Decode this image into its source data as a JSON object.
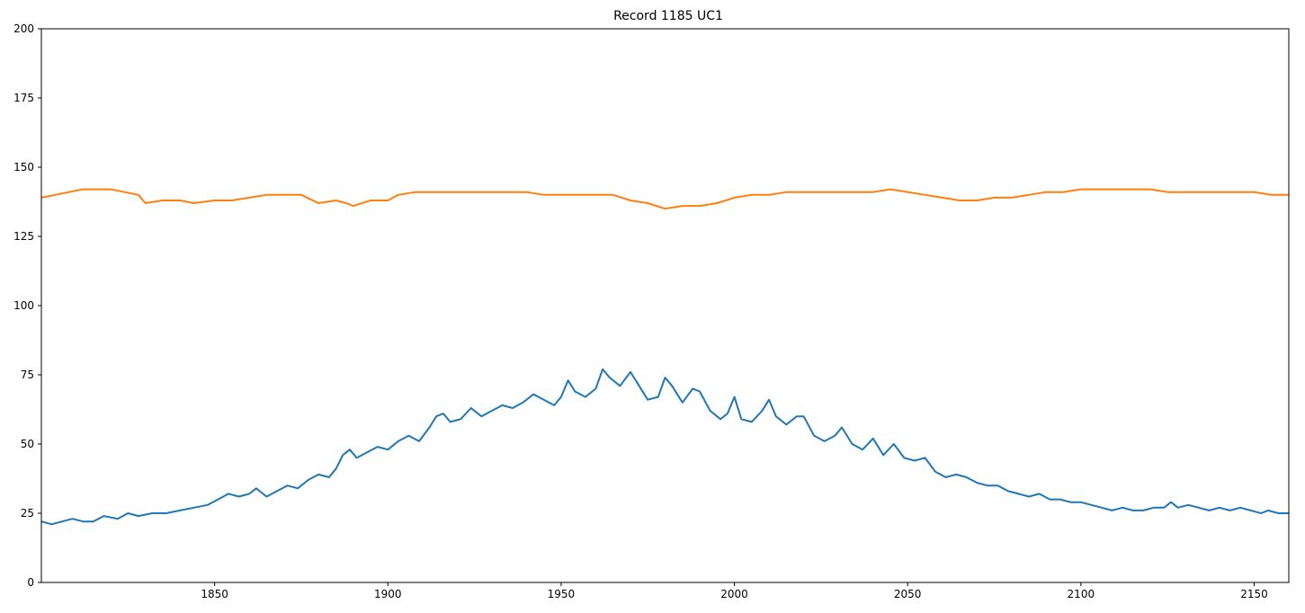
{
  "chart_data": {
    "type": "line",
    "title": "Record 1185 UC1",
    "xlabel": "",
    "ylabel": "",
    "xlim": [
      1800,
      2160
    ],
    "ylim": [
      0,
      200
    ],
    "xticks": [
      1850,
      1900,
      1950,
      2000,
      2050,
      2100,
      2150
    ],
    "yticks": [
      0,
      25,
      50,
      75,
      100,
      125,
      150,
      175,
      200
    ],
    "grid": false,
    "legend": "none",
    "series": [
      {
        "color": "#1f77b4",
        "points": [
          [
            1800,
            22
          ],
          [
            1803,
            21
          ],
          [
            1806,
            22
          ],
          [
            1809,
            23
          ],
          [
            1812,
            22
          ],
          [
            1815,
            22
          ],
          [
            1818,
            24
          ],
          [
            1822,
            23
          ],
          [
            1825,
            25
          ],
          [
            1828,
            24
          ],
          [
            1832,
            25
          ],
          [
            1836,
            25
          ],
          [
            1840,
            26
          ],
          [
            1844,
            27
          ],
          [
            1848,
            28
          ],
          [
            1851,
            30
          ],
          [
            1854,
            32
          ],
          [
            1857,
            31
          ],
          [
            1860,
            32
          ],
          [
            1862,
            34
          ],
          [
            1865,
            31
          ],
          [
            1868,
            33
          ],
          [
            1871,
            35
          ],
          [
            1874,
            34
          ],
          [
            1877,
            37
          ],
          [
            1880,
            39
          ],
          [
            1883,
            38
          ],
          [
            1885,
            41
          ],
          [
            1887,
            46
          ],
          [
            1889,
            48
          ],
          [
            1891,
            45
          ],
          [
            1894,
            47
          ],
          [
            1897,
            49
          ],
          [
            1900,
            48
          ],
          [
            1903,
            51
          ],
          [
            1906,
            53
          ],
          [
            1909,
            51
          ],
          [
            1912,
            56
          ],
          [
            1914,
            60
          ],
          [
            1916,
            61
          ],
          [
            1918,
            58
          ],
          [
            1921,
            59
          ],
          [
            1924,
            63
          ],
          [
            1927,
            60
          ],
          [
            1930,
            62
          ],
          [
            1933,
            64
          ],
          [
            1936,
            63
          ],
          [
            1939,
            65
          ],
          [
            1942,
            68
          ],
          [
            1945,
            66
          ],
          [
            1948,
            64
          ],
          [
            1950,
            67
          ],
          [
            1952,
            73
          ],
          [
            1954,
            69
          ],
          [
            1957,
            67
          ],
          [
            1960,
            70
          ],
          [
            1962,
            77
          ],
          [
            1964,
            74
          ],
          [
            1967,
            71
          ],
          [
            1970,
            76
          ],
          [
            1972,
            72
          ],
          [
            1975,
            66
          ],
          [
            1978,
            67
          ],
          [
            1980,
            74
          ],
          [
            1982,
            71
          ],
          [
            1985,
            65
          ],
          [
            1988,
            70
          ],
          [
            1990,
            69
          ],
          [
            1993,
            62
          ],
          [
            1996,
            59
          ],
          [
            1998,
            61
          ],
          [
            2000,
            67
          ],
          [
            2002,
            59
          ],
          [
            2005,
            58
          ],
          [
            2008,
            62
          ],
          [
            2010,
            66
          ],
          [
            2012,
            60
          ],
          [
            2015,
            57
          ],
          [
            2018,
            60
          ],
          [
            2020,
            60
          ],
          [
            2023,
            53
          ],
          [
            2026,
            51
          ],
          [
            2029,
            53
          ],
          [
            2031,
            56
          ],
          [
            2034,
            50
          ],
          [
            2037,
            48
          ],
          [
            2040,
            52
          ],
          [
            2043,
            46
          ],
          [
            2046,
            50
          ],
          [
            2049,
            45
          ],
          [
            2052,
            44
          ],
          [
            2055,
            45
          ],
          [
            2058,
            40
          ],
          [
            2061,
            38
          ],
          [
            2064,
            39
          ],
          [
            2067,
            38
          ],
          [
            2070,
            36
          ],
          [
            2073,
            35
          ],
          [
            2076,
            35
          ],
          [
            2079,
            33
          ],
          [
            2082,
            32
          ],
          [
            2085,
            31
          ],
          [
            2088,
            32
          ],
          [
            2091,
            30
          ],
          [
            2094,
            30
          ],
          [
            2097,
            29
          ],
          [
            2100,
            29
          ],
          [
            2103,
            28
          ],
          [
            2106,
            27
          ],
          [
            2109,
            26
          ],
          [
            2112,
            27
          ],
          [
            2115,
            26
          ],
          [
            2118,
            26
          ],
          [
            2121,
            27
          ],
          [
            2124,
            27
          ],
          [
            2126,
            29
          ],
          [
            2128,
            27
          ],
          [
            2131,
            28
          ],
          [
            2134,
            27
          ],
          [
            2137,
            26
          ],
          [
            2140,
            27
          ],
          [
            2143,
            26
          ],
          [
            2146,
            27
          ],
          [
            2149,
            26
          ],
          [
            2152,
            25
          ],
          [
            2154,
            26
          ],
          [
            2157,
            25
          ],
          [
            2160,
            25
          ]
        ]
      },
      {
        "color": "#ff7f0e",
        "points": [
          [
            1800,
            139
          ],
          [
            1804,
            140
          ],
          [
            1808,
            141
          ],
          [
            1812,
            142
          ],
          [
            1816,
            142
          ],
          [
            1820,
            142
          ],
          [
            1824,
            141
          ],
          [
            1828,
            140
          ],
          [
            1830,
            137
          ],
          [
            1835,
            138
          ],
          [
            1840,
            138
          ],
          [
            1844,
            137
          ],
          [
            1850,
            138
          ],
          [
            1855,
            138
          ],
          [
            1860,
            139
          ],
          [
            1865,
            140
          ],
          [
            1870,
            140
          ],
          [
            1875,
            140
          ],
          [
            1880,
            137
          ],
          [
            1885,
            138
          ],
          [
            1888,
            137
          ],
          [
            1890,
            136
          ],
          [
            1895,
            138
          ],
          [
            1900,
            138
          ],
          [
            1903,
            140
          ],
          [
            1908,
            141
          ],
          [
            1912,
            141
          ],
          [
            1916,
            141
          ],
          [
            1920,
            141
          ],
          [
            1925,
            141
          ],
          [
            1930,
            141
          ],
          [
            1935,
            141
          ],
          [
            1940,
            141
          ],
          [
            1945,
            140
          ],
          [
            1950,
            140
          ],
          [
            1955,
            140
          ],
          [
            1960,
            140
          ],
          [
            1965,
            140
          ],
          [
            1970,
            138
          ],
          [
            1975,
            137
          ],
          [
            1980,
            135
          ],
          [
            1985,
            136
          ],
          [
            1990,
            136
          ],
          [
            1995,
            137
          ],
          [
            2000,
            139
          ],
          [
            2005,
            140
          ],
          [
            2010,
            140
          ],
          [
            2015,
            141
          ],
          [
            2020,
            141
          ],
          [
            2025,
            141
          ],
          [
            2030,
            141
          ],
          [
            2035,
            141
          ],
          [
            2040,
            141
          ],
          [
            2045,
            142
          ],
          [
            2050,
            141
          ],
          [
            2055,
            140
          ],
          [
            2060,
            139
          ],
          [
            2065,
            138
          ],
          [
            2070,
            138
          ],
          [
            2075,
            139
          ],
          [
            2080,
            139
          ],
          [
            2085,
            140
          ],
          [
            2090,
            141
          ],
          [
            2095,
            141
          ],
          [
            2100,
            142
          ],
          [
            2105,
            142
          ],
          [
            2110,
            142
          ],
          [
            2115,
            142
          ],
          [
            2120,
            142
          ],
          [
            2125,
            141
          ],
          [
            2130,
            141
          ],
          [
            2135,
            141
          ],
          [
            2140,
            141
          ],
          [
            2145,
            141
          ],
          [
            2150,
            141
          ],
          [
            2155,
            140
          ],
          [
            2160,
            140
          ]
        ]
      }
    ]
  }
}
